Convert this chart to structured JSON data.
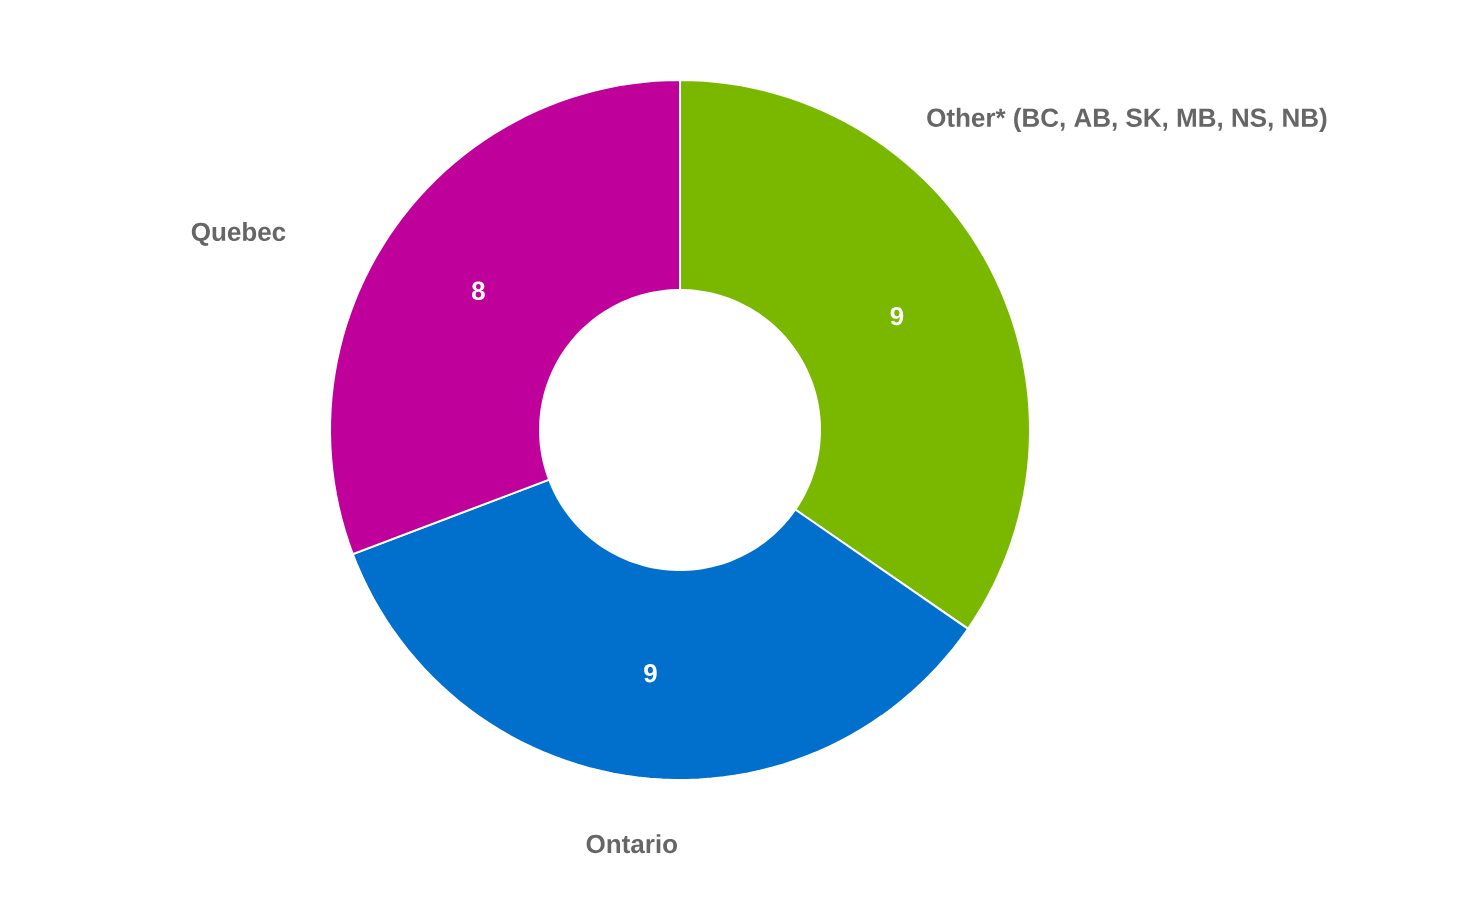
{
  "chart_data": {
    "type": "donut",
    "categories": [
      "Other* (BC, AB, SK, MB, NS, NB)",
      "Ontario",
      "Quebec"
    ],
    "values": [
      9,
      9,
      8
    ],
    "colors": [
      "#7ab800",
      "#0070cc",
      "#c0009a"
    ],
    "data_labels": true
  }
}
